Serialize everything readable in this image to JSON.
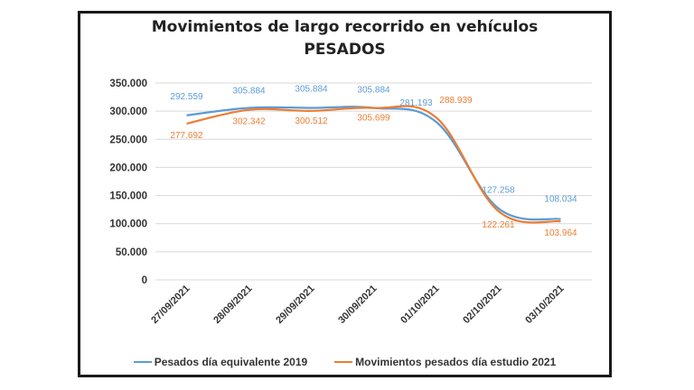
{
  "chart_data": {
    "type": "line",
    "title": "Movimientos de largo recorrido en vehículos",
    "subtitle": "PESADOS",
    "xlabel": "",
    "ylabel": "",
    "ylim": [
      0,
      350000
    ],
    "yticks": [
      0,
      50000,
      100000,
      150000,
      200000,
      250000,
      300000,
      350000
    ],
    "ytick_labels": [
      "0",
      "50.000",
      "100.000",
      "150.000",
      "200.000",
      "250.000",
      "300.000",
      "350.000"
    ],
    "categories": [
      "27/09/2021",
      "28/09/2021",
      "29/09/2021",
      "30/09/2021",
      "01/10/2021",
      "02/10/2021",
      "03/10/2021"
    ],
    "grid": true,
    "legend": "bottom",
    "series": [
      {
        "name": "Pesados día equivalente 2019",
        "color": "#5b9bd5",
        "values": [
          292559,
          305884,
          305884,
          305884,
          281193,
          127258,
          108034
        ],
        "labels": [
          "292.559",
          "305.884",
          "305.884",
          "305.884",
          "281.193",
          "127.258",
          "108.034"
        ]
      },
      {
        "name": "Movimientos pesados día estudio 2021",
        "color": "#ed7d31",
        "values": [
          277692,
          302342,
          300512,
          305699,
          288939,
          122261,
          103964
        ],
        "labels": [
          "277.692",
          "302.342",
          "300.512",
          "305.699",
          "288.939",
          "122.261",
          "103.964"
        ]
      }
    ]
  },
  "legend_items": [
    "Pesados día equivalente 2019",
    "Movimientos pesados día estudio 2021"
  ]
}
